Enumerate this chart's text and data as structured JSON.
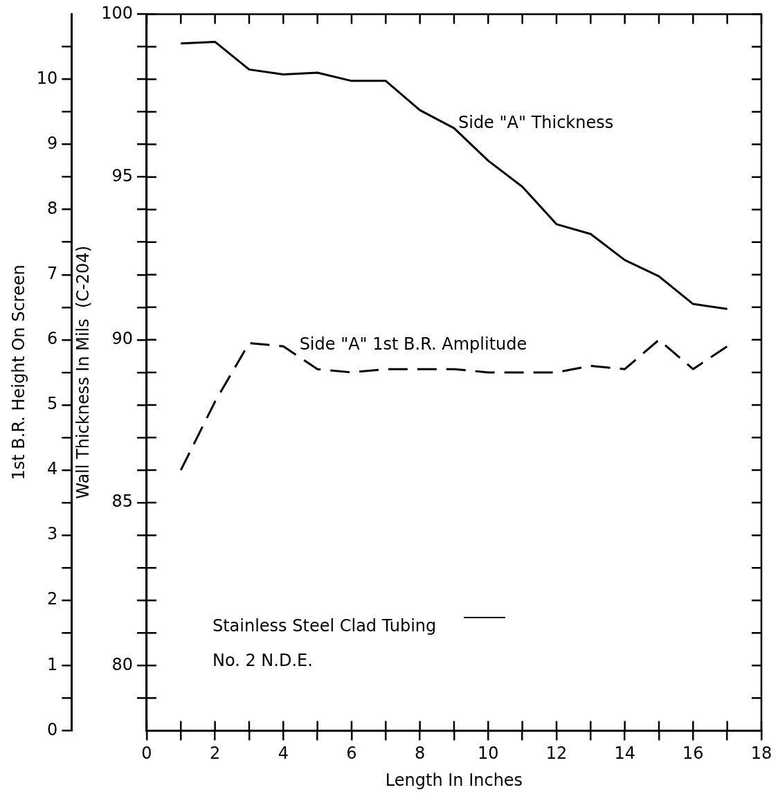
{
  "chart_data": {
    "type": "line",
    "xlabel": "Length In Inches",
    "ylabel": "Wall Thickness In Mils  (C-204)",
    "y2label": "1st B.R. Height On Screen",
    "x": [
      1,
      2,
      3,
      4,
      5,
      6,
      7,
      8,
      9,
      10,
      11,
      12,
      13,
      14,
      15,
      16,
      17
    ],
    "series": [
      {
        "name": "Side \"A\" Thickness",
        "color": "#000000",
        "line_style": "solid",
        "values": [
          99.1,
          99.15,
          98.3,
          98.15,
          98.2,
          97.95,
          97.95,
          97.05,
          96.5,
          95.5,
          94.7,
          93.55,
          93.25,
          92.45,
          91.95,
          91.1,
          90.95
        ]
      },
      {
        "name": "Side \"A\" 1st B.R. Amplitude",
        "color": "#000000",
        "line_style": "dashed",
        "axis": "y2",
        "values": [
          4.0,
          5.05,
          5.95,
          5.9,
          5.55,
          5.5,
          5.55,
          5.55,
          5.55,
          5.5,
          5.5,
          5.5,
          5.6,
          5.55,
          6.0,
          5.55,
          5.9
        ]
      }
    ],
    "xlim": [
      0,
      18
    ],
    "xticks": [
      0,
      {
        "value": 1,
        "label": null
      },
      2,
      {
        "value": 3,
        "label": null
      },
      4,
      {
        "value": 5,
        "label": null
      },
      6,
      {
        "value": 7,
        "label": null
      },
      8,
      {
        "value": 9,
        "label": null
      },
      10,
      {
        "value": 11,
        "label": null
      },
      12,
      {
        "value": 13,
        "label": null
      },
      14,
      {
        "value": 15,
        "label": null
      },
      16,
      {
        "value": 17,
        "label": null
      },
      18
    ],
    "ylim": [
      78,
      100
    ],
    "yticks": [
      {
        "value": 79,
        "label": null
      },
      80,
      {
        "value": 81,
        "label": null
      },
      {
        "value": 82,
        "label": null
      },
      {
        "value": 83,
        "label": null
      },
      {
        "value": 84,
        "label": null
      },
      85,
      {
        "value": 86,
        "label": null
      },
      {
        "value": 87,
        "label": null
      },
      {
        "value": 88,
        "label": null
      },
      {
        "value": 89,
        "label": null
      },
      90,
      {
        "value": 91,
        "label": null
      },
      {
        "value": 92,
        "label": null
      },
      {
        "value": 93,
        "label": null
      },
      {
        "value": 94,
        "label": null
      },
      95,
      {
        "value": 96,
        "label": null
      },
      {
        "value": 97,
        "label": null
      },
      {
        "value": 98,
        "label": null
      },
      {
        "value": 99,
        "label": null
      },
      100
    ],
    "y2lim": [
      0,
      11
    ],
    "y2ticks": [
      0,
      {
        "value": 0.5,
        "label": null
      },
      1,
      {
        "value": 1.5,
        "label": null
      },
      2,
      {
        "value": 2.5,
        "label": null
      },
      3,
      {
        "value": 3.5,
        "label": null
      },
      4,
      {
        "value": 4.5,
        "label": null
      },
      5,
      {
        "value": 5.5,
        "label": null
      },
      6,
      {
        "value": 6.5,
        "label": null
      },
      7,
      {
        "value": 7.5,
        "label": null
      },
      8,
      {
        "value": 8.5,
        "label": null
      },
      9,
      {
        "value": 9.5,
        "label": null
      },
      10,
      {
        "value": 10.5,
        "label": null
      }
    ],
    "annotations": [
      "Stainless Steel Clad Tubing",
      "No. 2 N.D.E."
    ],
    "legend": false,
    "grid": false,
    "marker": "none"
  }
}
